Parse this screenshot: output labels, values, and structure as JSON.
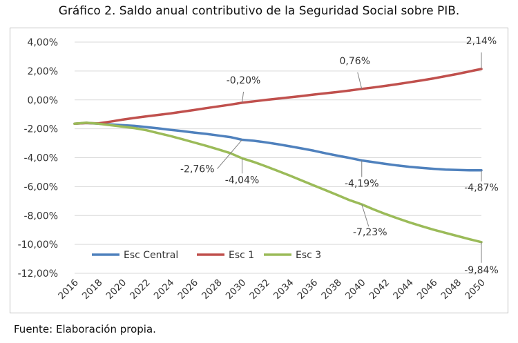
{
  "title": "Gráfico 2. Saldo anual contributivo de la Seguridad Social sobre PIB.",
  "source": "Fuente: Elaboración propia.",
  "chart_data": {
    "type": "line",
    "title": "Gráfico 2. Saldo anual contributivo de la Seguridad Social sobre PIB.",
    "xlabel": "",
    "ylabel": "",
    "ylim": [
      -12,
      4
    ],
    "yticks": [
      4,
      2,
      0,
      -2,
      -4,
      -6,
      -8,
      -10,
      -12
    ],
    "ytick_labels": [
      "4,00%",
      "2,00%",
      "0,00%",
      "-2,00%",
      "-4,00%",
      "-6,00%",
      "-8,00%",
      "-10,00%",
      "-12,00%"
    ],
    "xlim": [
      2016,
      2050
    ],
    "xtick_labels": [
      "2016",
      "2018",
      "2020",
      "2022",
      "2024",
      "2026",
      "2028",
      "2030",
      "2032",
      "2034",
      "2036",
      "2038",
      "2040",
      "2042",
      "2044",
      "2046",
      "2048",
      "2050"
    ],
    "grid": "horizontal",
    "legend_position": "bottom-left",
    "series": [
      {
        "name": "Esc Central",
        "color": "#4f81bd",
        "x": [
          2016,
          2017,
          2018,
          2019,
          2020,
          2021,
          2022,
          2023,
          2024,
          2025,
          2026,
          2027,
          2028,
          2029,
          2030,
          2031,
          2032,
          2033,
          2034,
          2035,
          2036,
          2037,
          2038,
          2039,
          2040,
          2041,
          2042,
          2043,
          2044,
          2045,
          2046,
          2047,
          2048,
          2049,
          2050
        ],
        "y": [
          -1.65,
          -1.6,
          -1.65,
          -1.7,
          -1.75,
          -1.8,
          -1.88,
          -1.97,
          -2.07,
          -2.16,
          -2.26,
          -2.35,
          -2.46,
          -2.57,
          -2.76,
          -2.83,
          -2.94,
          -3.07,
          -3.21,
          -3.36,
          -3.52,
          -3.7,
          -3.86,
          -4.02,
          -4.19,
          -4.31,
          -4.43,
          -4.54,
          -4.63,
          -4.7,
          -4.77,
          -4.82,
          -4.85,
          -4.87,
          -4.87
        ]
      },
      {
        "name": "Esc 1",
        "color": "#c0504d",
        "x": [
          2016,
          2017,
          2018,
          2019,
          2020,
          2021,
          2022,
          2023,
          2024,
          2025,
          2026,
          2027,
          2028,
          2029,
          2030,
          2031,
          2032,
          2033,
          2034,
          2035,
          2036,
          2037,
          2038,
          2039,
          2040,
          2041,
          2042,
          2043,
          2044,
          2045,
          2046,
          2047,
          2048,
          2049,
          2050
        ],
        "y": [
          -1.65,
          -1.6,
          -1.62,
          -1.5,
          -1.37,
          -1.25,
          -1.14,
          -1.04,
          -0.94,
          -0.82,
          -0.7,
          -0.57,
          -0.45,
          -0.33,
          -0.2,
          -0.1,
          0.0,
          0.09,
          0.18,
          0.27,
          0.37,
          0.46,
          0.55,
          0.65,
          0.76,
          0.86,
          0.97,
          1.09,
          1.22,
          1.35,
          1.49,
          1.64,
          1.8,
          1.97,
          2.14
        ]
      },
      {
        "name": "Esc 3",
        "color": "#9bbb59",
        "x": [
          2016,
          2017,
          2018,
          2019,
          2020,
          2021,
          2022,
          2023,
          2024,
          2025,
          2026,
          2027,
          2028,
          2029,
          2030,
          2031,
          2032,
          2033,
          2034,
          2035,
          2036,
          2037,
          2038,
          2039,
          2040,
          2041,
          2042,
          2043,
          2044,
          2045,
          2046,
          2047,
          2048,
          2049,
          2050
        ],
        "y": [
          -1.65,
          -1.58,
          -1.65,
          -1.75,
          -1.85,
          -1.95,
          -2.1,
          -2.3,
          -2.5,
          -2.72,
          -2.95,
          -3.18,
          -3.42,
          -3.68,
          -4.04,
          -4.3,
          -4.6,
          -4.92,
          -5.24,
          -5.58,
          -5.92,
          -6.26,
          -6.6,
          -6.94,
          -7.23,
          -7.58,
          -7.9,
          -8.2,
          -8.48,
          -8.74,
          -8.98,
          -9.2,
          -9.42,
          -9.64,
          -9.84
        ]
      }
    ],
    "annotations": [
      {
        "text": "2,14%",
        "series": "Esc 1",
        "x": 2050,
        "y": 2.14
      },
      {
        "text": "0,76%",
        "series": "Esc 1",
        "x": 2040,
        "y": 0.76
      },
      {
        "text": "-0,20%",
        "series": "Esc 1",
        "x": 2030,
        "y": -0.2
      },
      {
        "text": "-2,76%",
        "series": "Esc Central",
        "x": 2030,
        "y": -2.76
      },
      {
        "text": "-4,19%",
        "series": "Esc Central",
        "x": 2040,
        "y": -4.19
      },
      {
        "text": "-4,87%",
        "series": "Esc Central",
        "x": 2050,
        "y": -4.87
      },
      {
        "text": "-4,04%",
        "series": "Esc 3",
        "x": 2030,
        "y": -4.04
      },
      {
        "text": "-7,23%",
        "series": "Esc 3",
        "x": 2040,
        "y": -7.23
      },
      {
        "text": "-9,84%",
        "series": "Esc 3",
        "x": 2050,
        "y": -9.84
      }
    ]
  }
}
